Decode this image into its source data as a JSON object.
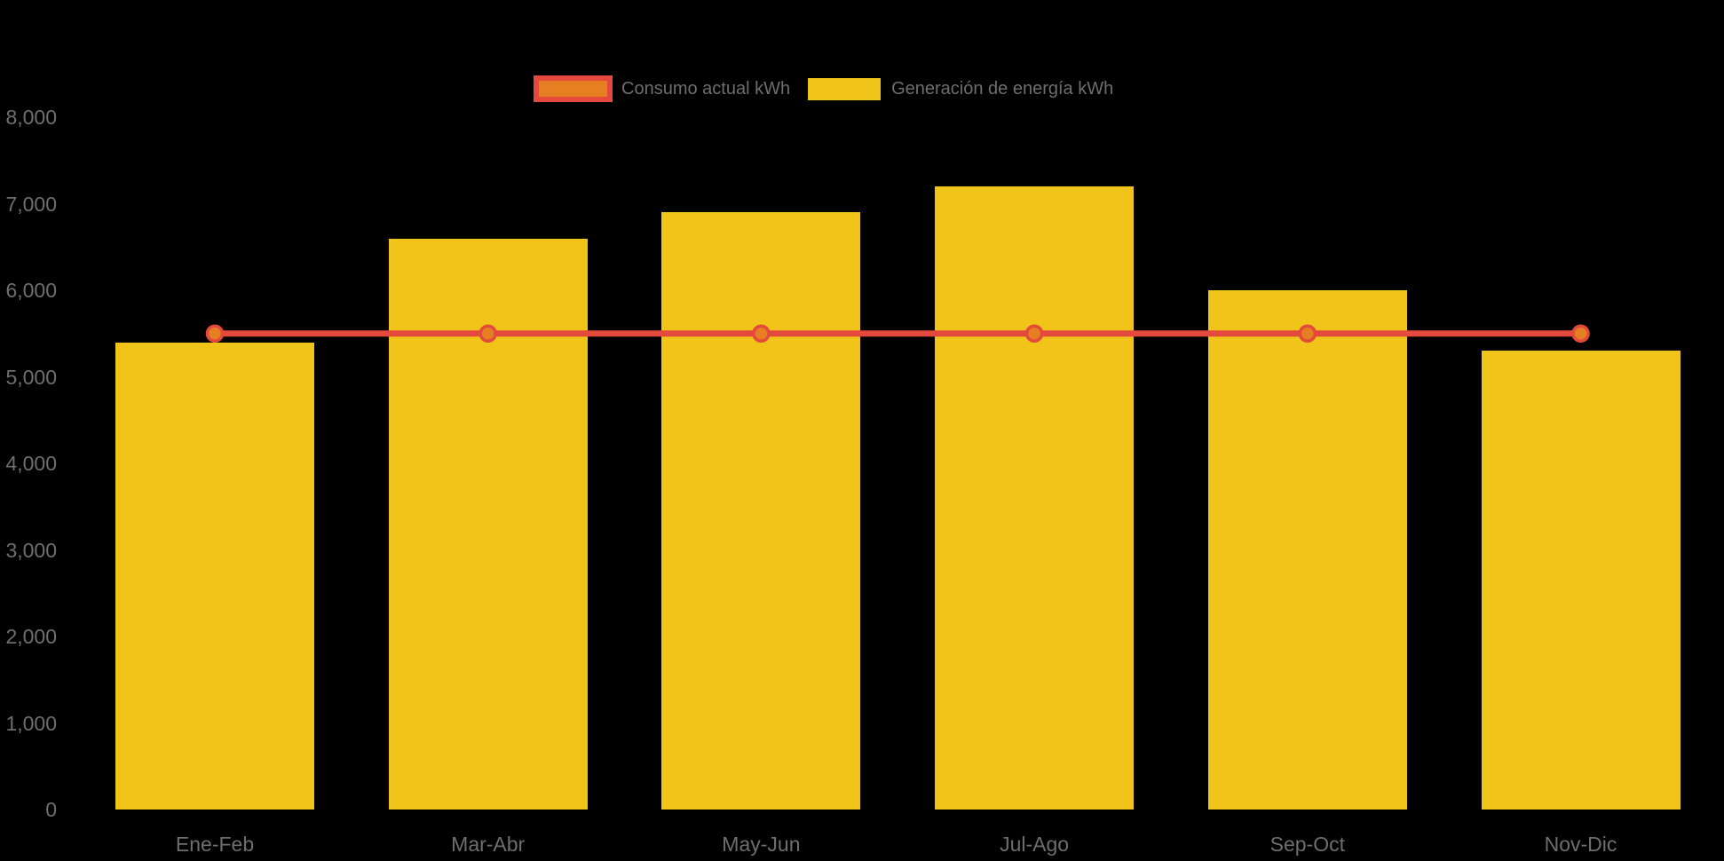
{
  "chart": {
    "legend": {
      "items": [
        {
          "label": "Consumo actual kWh"
        },
        {
          "label": "Generación de energía kWh"
        }
      ]
    }
  },
  "chart_data": {
    "type": "bar",
    "title": "",
    "xlabel": "",
    "ylabel": "",
    "categories": [
      "Ene-Feb",
      "Mar-Abr",
      "May-Jun",
      "Jul-Ago",
      "Sep-Oct",
      "Nov-Dic"
    ],
    "series": [
      {
        "name": "Consumo actual kWh",
        "type": "line",
        "values": [
          5500,
          5500,
          5500,
          5500,
          5500,
          5500
        ],
        "line_color": "#E4493D",
        "marker_fill": "#E67F22"
      },
      {
        "name": "Generación de energía kWh",
        "type": "bar",
        "values": [
          5400,
          6600,
          6900,
          7200,
          6000,
          5300
        ],
        "bar_color": "#F0C419"
      }
    ],
    "ylim": [
      0,
      8000
    ],
    "y_ticks": [
      0,
      1000,
      2000,
      3000,
      4000,
      5000,
      6000,
      7000,
      8000
    ],
    "y_tick_labels": [
      "0",
      "1,000",
      "2,000",
      "3,000",
      "4,000",
      "5,000",
      "6,000",
      "7,000",
      "8,000"
    ],
    "grid": false,
    "legend_position": "top-center",
    "background_color": "#000000",
    "label_color": "#6E6E6E"
  }
}
